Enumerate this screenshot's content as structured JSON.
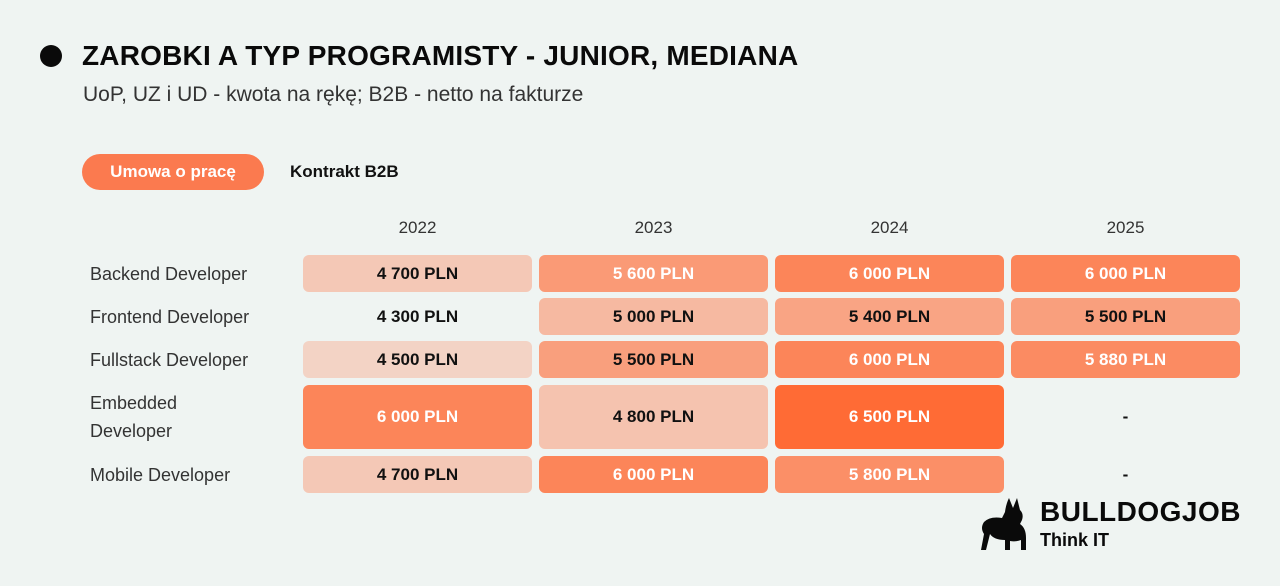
{
  "header": {
    "title": "ZAROBKI A TYP PROGRAMISTY - JUNIOR, MEDIANA",
    "subtitle": "UoP, UZ i UD - kwota na rękę; B2B - netto na fakturze"
  },
  "tabs": [
    {
      "label": "Umowa o pracę",
      "active": true
    },
    {
      "label": "Kontrakt B2B",
      "active": false
    }
  ],
  "colors": {
    "accent": "#fb7a4f",
    "background": "#eff4f2",
    "cell_light": "#f2ddd3",
    "cell_strong": "#ff6b35"
  },
  "logo": {
    "name": "BULLDOGJOB",
    "tagline": "Think IT",
    "icon": "bulldog-icon"
  },
  "chart_data": {
    "type": "table",
    "title": "ZAROBKI A TYP PROGRAMISTY - JUNIOR, MEDIANA",
    "subtitle": "UoP, UZ i UD - kwota na rękę; B2B - netto na fakturze",
    "unit": "PLN",
    "columns": [
      "2022",
      "2023",
      "2024",
      "2025"
    ],
    "rows": [
      {
        "label": "Backend Developer",
        "values": [
          4700,
          5600,
          6000,
          6000
        ],
        "display": [
          "4 700 PLN",
          "5 600 PLN",
          "6 000 PLN",
          "6 000 PLN"
        ]
      },
      {
        "label": "Frontend Developer",
        "values": [
          4300,
          5000,
          5400,
          5500
        ],
        "display": [
          "4 300 PLN",
          "5 000 PLN",
          "5 400 PLN",
          "5 500 PLN"
        ]
      },
      {
        "label": "Fullstack Developer",
        "values": [
          4500,
          5500,
          6000,
          5880
        ],
        "display": [
          "4 500 PLN",
          "5 500 PLN",
          "6 000 PLN",
          "5 880 PLN"
        ]
      },
      {
        "label": "Embedded Developer",
        "values": [
          6000,
          4800,
          6500,
          null
        ],
        "display": [
          "6 000 PLN",
          "4 800 PLN",
          "6 500 PLN",
          "-"
        ]
      },
      {
        "label": "Mobile Developer",
        "values": [
          4700,
          6000,
          5800,
          null
        ],
        "display": [
          "4 700 PLN",
          "6 000 PLN",
          "5 800 PLN",
          "-"
        ]
      }
    ]
  }
}
